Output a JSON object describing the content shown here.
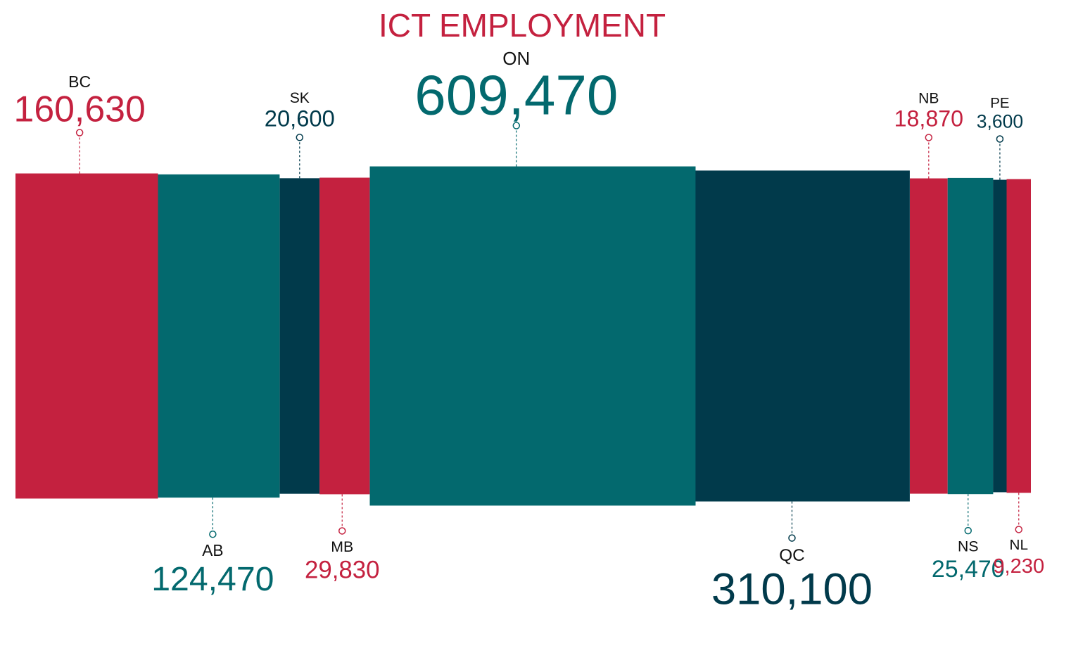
{
  "colors": {
    "red": "#c4213f",
    "teal": "#03696e",
    "navy": "#013a4b",
    "white": "#ffffff"
  },
  "chart_data": {
    "type": "bar",
    "title": "ICT EMPLOYMENT",
    "xlabel": "",
    "ylabel": "",
    "grid": false,
    "legend": "none",
    "categories": [
      "BC",
      "AB",
      "SK",
      "MB",
      "ON",
      "QC",
      "NB",
      "NS",
      "PE",
      "NL"
    ],
    "values": [
      160630,
      124470,
      20600,
      29830,
      609470,
      310100,
      18870,
      25470,
      3600,
      9230
    ],
    "value_labels": [
      "160,630",
      "124,470",
      "20,600",
      "29,830",
      "609,470",
      "310,100",
      "18,870",
      "25,470",
      "3,600",
      "9,230"
    ],
    "bar_colors": [
      "red",
      "teal",
      "navy",
      "red",
      "teal",
      "navy",
      "red",
      "teal",
      "navy",
      "red"
    ],
    "label_positions": [
      "top",
      "bottom",
      "top",
      "bottom",
      "top",
      "bottom",
      "top",
      "bottom",
      "top",
      "bottom"
    ]
  }
}
